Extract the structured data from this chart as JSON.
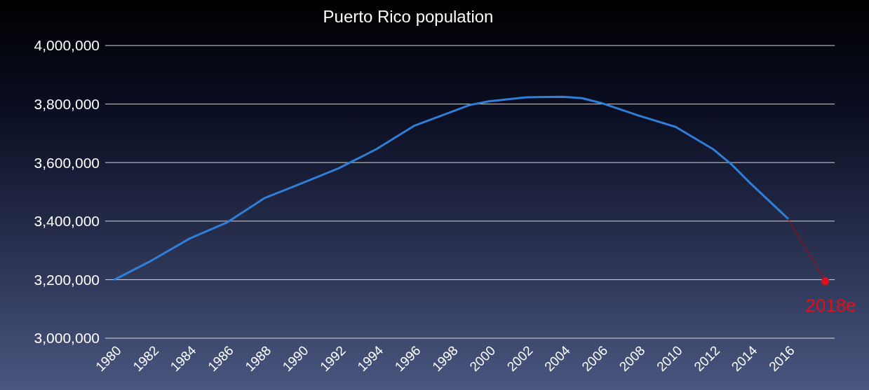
{
  "chart_data": {
    "type": "line",
    "title": "Puerto Rico population",
    "xlim": [
      1979.5,
      2018.5
    ],
    "xticks": [
      1980,
      1982,
      1984,
      1986,
      1988,
      1990,
      1992,
      1994,
      1996,
      1998,
      2000,
      2002,
      2004,
      2006,
      2008,
      2010,
      2012,
      2014,
      2016
    ],
    "ylim": [
      3000000,
      4000000
    ],
    "yticks": [
      {
        "value": 3000000,
        "label": "3,000,000"
      },
      {
        "value": 3200000,
        "label": "3,200,000"
      },
      {
        "value": 3400000,
        "label": "3,400,000"
      },
      {
        "value": 3600000,
        "label": "3,600,000"
      },
      {
        "value": 3800000,
        "label": "3,800,000"
      },
      {
        "value": 4000000,
        "label": "4,000,000"
      }
    ],
    "grid": "y",
    "marker": "none",
    "line_style": "solid",
    "series": [
      {
        "color": "#2f7fd8",
        "x": [
          1980,
          1982,
          1984,
          1986,
          1988,
          1990,
          1992,
          1994,
          1996,
          1998,
          1999,
          2000,
          2002,
          2004,
          2005,
          2006,
          2008,
          2010,
          2012,
          2013,
          2014,
          2016
        ],
        "values": [
          3200000,
          3266000,
          3340000,
          3395000,
          3478000,
          3529000,
          3581000,
          3646000,
          3725000,
          3773000,
          3797000,
          3809000,
          3823000,
          3825000,
          3820000,
          3804000,
          3761000,
          3722000,
          3646000,
          3593000,
          3529000,
          3409000
        ]
      },
      {
        "color": "#c00000",
        "x": [
          2016,
          2018
        ],
        "values": [
          3409000,
          3195000
        ]
      },
      {
        "type": "scatter",
        "marker": "circle",
        "color": "#e0101a",
        "x": [
          2018
        ],
        "values": [
          3195000
        ]
      }
    ],
    "annotations": [
      {
        "text": "2018e",
        "x": 2018,
        "y": 3195000
      }
    ]
  }
}
